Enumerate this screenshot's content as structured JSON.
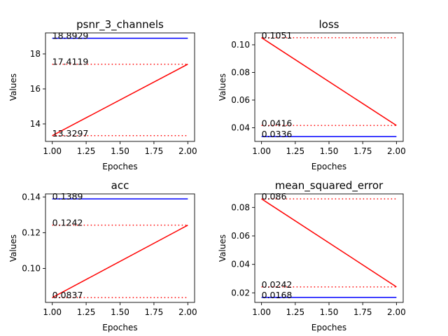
{
  "chart_data": [
    {
      "type": "line",
      "title": "psnr_3_channels",
      "xlabel": "Epoches",
      "ylabel": "Values",
      "xlim": [
        0.95,
        2.05
      ],
      "ylim": [
        13.0,
        19.2
      ],
      "xticks": [
        1.0,
        1.25,
        1.5,
        1.75,
        2.0
      ],
      "xtick_labels": [
        "1.00",
        "1.25",
        "1.50",
        "1.75",
        "2.00"
      ],
      "yticks": [
        14,
        16,
        18
      ],
      "ytick_labels": [
        "14",
        "16",
        "18"
      ],
      "series": [
        {
          "color": "#0000ff",
          "style": "solid",
          "x": [
            1,
            2
          ],
          "y": [
            18.8929,
            18.8929
          ]
        },
        {
          "color": "#ff0000",
          "style": "solid",
          "x": [
            1,
            2
          ],
          "y": [
            13.3297,
            17.4119
          ]
        }
      ],
      "hlines": [
        {
          "y": 17.4119,
          "color": "#ff0000",
          "style": "dotted"
        },
        {
          "y": 13.3297,
          "color": "#ff0000",
          "style": "dotted"
        }
      ],
      "annotations": [
        {
          "text": "18.8929",
          "x": 1.0,
          "y": 18.8929
        },
        {
          "text": "17.4119",
          "x": 1.0,
          "y": 17.4119
        },
        {
          "text": "13.3297",
          "x": 1.0,
          "y": 13.3297
        }
      ]
    },
    {
      "type": "line",
      "title": "loss",
      "xlabel": "Epoches",
      "ylabel": "Values",
      "xlim": [
        0.95,
        2.05
      ],
      "ylim": [
        0.0301,
        0.1086
      ],
      "xticks": [
        1.0,
        1.25,
        1.5,
        1.75,
        2.0
      ],
      "xtick_labels": [
        "1.00",
        "1.25",
        "1.50",
        "1.75",
        "2.00"
      ],
      "yticks": [
        0.04,
        0.06,
        0.08,
        0.1
      ],
      "ytick_labels": [
        "0.04",
        "0.06",
        "0.08",
        "0.10"
      ],
      "series": [
        {
          "color": "#0000ff",
          "style": "solid",
          "x": [
            1,
            2
          ],
          "y": [
            0.0336,
            0.0336
          ]
        },
        {
          "color": "#ff0000",
          "style": "solid",
          "x": [
            1,
            2
          ],
          "y": [
            0.1051,
            0.0416
          ]
        }
      ],
      "hlines": [
        {
          "y": 0.1051,
          "color": "#ff0000",
          "style": "dotted"
        },
        {
          "y": 0.0416,
          "color": "#ff0000",
          "style": "dotted"
        }
      ],
      "annotations": [
        {
          "text": "0.1051",
          "x": 1.0,
          "y": 0.1051
        },
        {
          "text": "0.0416",
          "x": 1.0,
          "y": 0.0416
        },
        {
          "text": "0.0336",
          "x": 1.0,
          "y": 0.0336
        }
      ]
    },
    {
      "type": "line",
      "title": "acc",
      "xlabel": "Epoches",
      "ylabel": "Values",
      "xlim": [
        0.95,
        2.05
      ],
      "ylim": [
        0.081,
        0.1417
      ],
      "xticks": [
        1.0,
        1.25,
        1.5,
        1.75,
        2.0
      ],
      "xtick_labels": [
        "1.00",
        "1.25",
        "1.50",
        "1.75",
        "2.00"
      ],
      "yticks": [
        0.1,
        0.12,
        0.14
      ],
      "ytick_labels": [
        "0.10",
        "0.12",
        "0.14"
      ],
      "series": [
        {
          "color": "#0000ff",
          "style": "solid",
          "x": [
            1,
            2
          ],
          "y": [
            0.1389,
            0.1389
          ]
        },
        {
          "color": "#ff0000",
          "style": "solid",
          "x": [
            1,
            2
          ],
          "y": [
            0.0837,
            0.1242
          ]
        }
      ],
      "hlines": [
        {
          "y": 0.1242,
          "color": "#ff0000",
          "style": "dotted"
        },
        {
          "y": 0.0837,
          "color": "#ff0000",
          "style": "dotted"
        }
      ],
      "annotations": [
        {
          "text": "0.1389",
          "x": 1.0,
          "y": 0.1389
        },
        {
          "text": "0.1242",
          "x": 1.0,
          "y": 0.1242
        },
        {
          "text": "0.0837",
          "x": 1.0,
          "y": 0.0837
        }
      ]
    },
    {
      "type": "line",
      "title": "mean_squared_error",
      "xlabel": "Epoches",
      "ylabel": "Values",
      "xlim": [
        0.95,
        2.05
      ],
      "ylim": [
        0.0133,
        0.0895
      ],
      "xticks": [
        1.0,
        1.25,
        1.5,
        1.75,
        2.0
      ],
      "xtick_labels": [
        "1.00",
        "1.25",
        "1.50",
        "1.75",
        "2.00"
      ],
      "yticks": [
        0.02,
        0.04,
        0.06,
        0.08
      ],
      "ytick_labels": [
        "0.02",
        "0.04",
        "0.06",
        "0.08"
      ],
      "series": [
        {
          "color": "#0000ff",
          "style": "solid",
          "x": [
            1,
            2
          ],
          "y": [
            0.0168,
            0.0168
          ]
        },
        {
          "color": "#ff0000",
          "style": "solid",
          "x": [
            1,
            2
          ],
          "y": [
            0.086,
            0.0242
          ]
        }
      ],
      "hlines": [
        {
          "y": 0.086,
          "color": "#ff0000",
          "style": "dotted"
        },
        {
          "y": 0.0242,
          "color": "#ff0000",
          "style": "dotted"
        }
      ],
      "annotations": [
        {
          "text": "0.086",
          "x": 1.0,
          "y": 0.086
        },
        {
          "text": "0.0242",
          "x": 1.0,
          "y": 0.0242
        },
        {
          "text": "0.0168",
          "x": 1.0,
          "y": 0.0168
        }
      ]
    }
  ]
}
